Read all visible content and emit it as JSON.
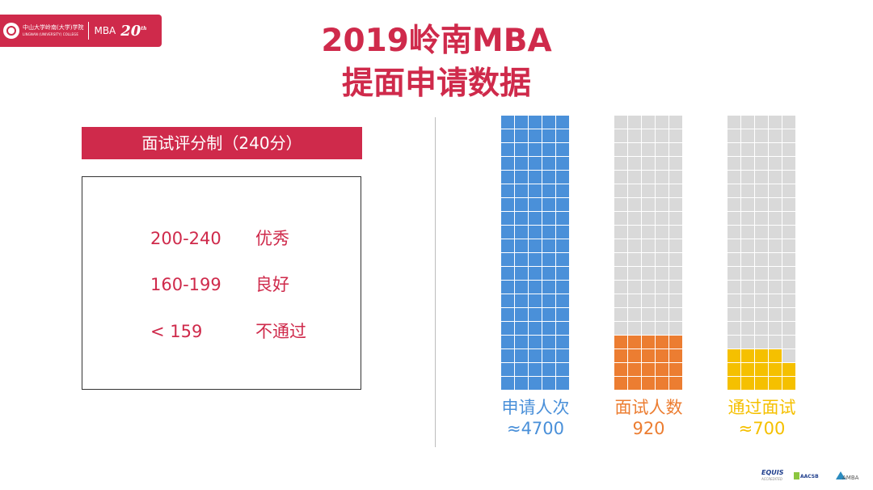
{
  "logo": {
    "school_cn": "中山大学岭南(大学)学院",
    "school_en": "LINGNAN (UNIVERSITY) COLLEGE",
    "program": "MBA",
    "anniversary": "20",
    "anniversary_suffix": "th"
  },
  "title": {
    "line1": "2019岭南MBA",
    "line2": "提面申请数据"
  },
  "scoring": {
    "header": "面试评分制（240分）",
    "rows": [
      {
        "range": "200-240",
        "grade": "优秀"
      },
      {
        "range": "160-199",
        "grade": "良好"
      },
      {
        "range": "< 159",
        "grade": "不通过"
      }
    ]
  },
  "colors": {
    "brand": "#cf2a4b",
    "apply": "#4a90d9",
    "interview": "#ec7d31",
    "pass": "#f5c000",
    "empty": "#d9d9d9"
  },
  "chart_data": {
    "type": "waffle",
    "grid": {
      "columns": 5,
      "rows": 20
    },
    "series": [
      {
        "name": "申请人次",
        "value_label": "≈4700",
        "value": 4700,
        "filled": 100,
        "color": "#4a90d9"
      },
      {
        "name": "面试人数",
        "value_label": "920",
        "value": 920,
        "filled": 20,
        "color": "#ec7d31"
      },
      {
        "name": "通过面试",
        "value_label": "≈700",
        "value": 700,
        "filled": 14,
        "color": "#f5c000"
      }
    ]
  },
  "accreditations": {
    "equis": "EQUIS",
    "equis_sub": "ACCREDITED",
    "aacsb": "AACSB",
    "amba": "AMBA"
  }
}
